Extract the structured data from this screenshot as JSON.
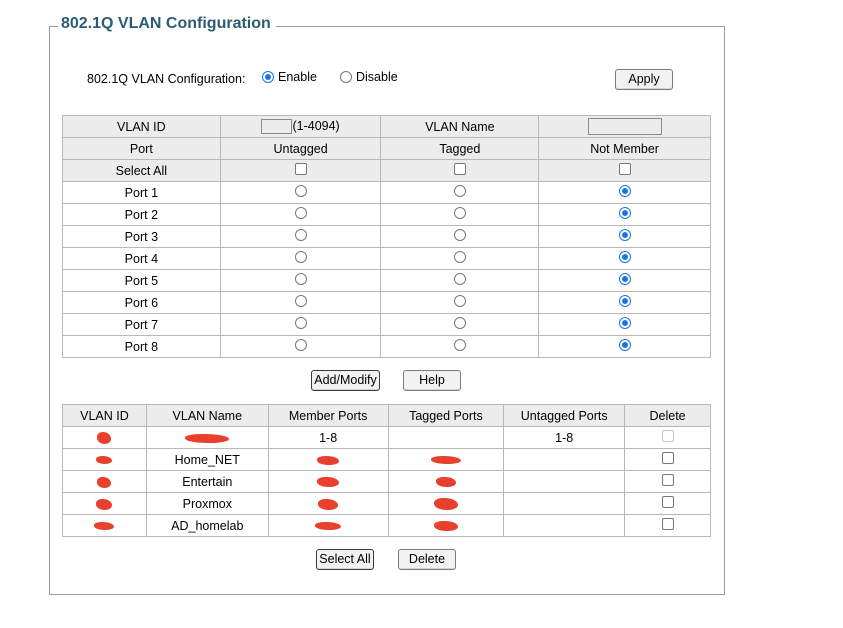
{
  "legend": "802.1Q VLAN Configuration",
  "config": {
    "label": "802.1Q VLAN Configuration:",
    "enable_label": "Enable",
    "disable_label": "Disable",
    "selected": "Enable",
    "apply_label": "Apply"
  },
  "editor": {
    "vlan_id_label": "VLAN ID",
    "vlan_id_value": "",
    "vlan_id_range": "(1-4094)",
    "vlan_name_label": "VLAN Name",
    "vlan_name_value": "",
    "col_port": "Port",
    "col_untagged": "Untagged",
    "col_tagged": "Tagged",
    "col_not_member": "Not Member",
    "select_all_label": "Select All",
    "ports": [
      {
        "label": "Port 1",
        "membership": "Not Member"
      },
      {
        "label": "Port 2",
        "membership": "Not Member"
      },
      {
        "label": "Port 3",
        "membership": "Not Member"
      },
      {
        "label": "Port 4",
        "membership": "Not Member"
      },
      {
        "label": "Port 5",
        "membership": "Not Member"
      },
      {
        "label": "Port 6",
        "membership": "Not Member"
      },
      {
        "label": "Port 7",
        "membership": "Not Member"
      },
      {
        "label": "Port 8",
        "membership": "Not Member"
      }
    ],
    "add_modify_label": "Add/Modify",
    "help_label": "Help"
  },
  "vlan_table": {
    "headers": [
      "VLAN ID",
      "VLAN Name",
      "Member Ports",
      "Tagged Ports",
      "Untagged Ports",
      "Delete"
    ],
    "rows": [
      {
        "vlan_id": "redacted",
        "vlan_name": "redacted",
        "member_ports": "1-8",
        "tagged_ports": "",
        "untagged_ports": "1-8",
        "delete_enabled": false
      },
      {
        "vlan_id": "redacted",
        "vlan_name": "Home_NET",
        "member_ports": "redacted",
        "tagged_ports": "redacted",
        "untagged_ports": "",
        "delete_enabled": true
      },
      {
        "vlan_id": "redacted",
        "vlan_name": "Entertain",
        "member_ports": "redacted",
        "tagged_ports": "redacted",
        "untagged_ports": "",
        "delete_enabled": true
      },
      {
        "vlan_id": "redacted",
        "vlan_name": "Proxmox",
        "member_ports": "redacted",
        "tagged_ports": "redacted",
        "untagged_ports": "",
        "delete_enabled": true
      },
      {
        "vlan_id": "redacted",
        "vlan_name": "AD_homelab",
        "member_ports": "redacted",
        "tagged_ports": "redacted",
        "untagged_ports": "",
        "delete_enabled": true
      }
    ],
    "select_all_label": "Select All",
    "delete_label": "Delete"
  },
  "colors": {
    "legend": "#2a5d73",
    "radio_selected": "#1a73e8",
    "redaction": "#e8402c",
    "header_bg": "#ececec"
  }
}
